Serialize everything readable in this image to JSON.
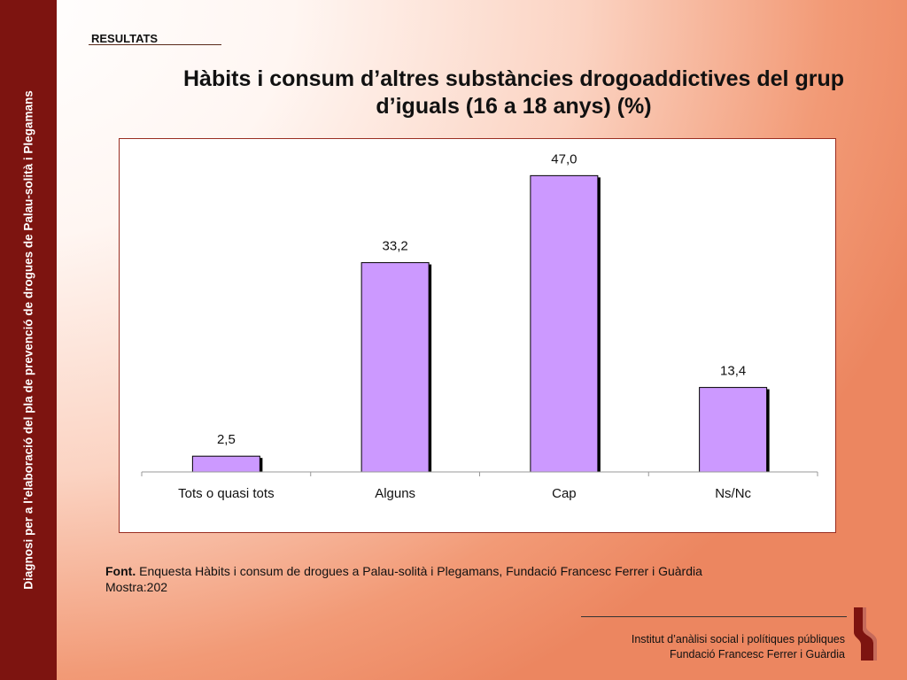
{
  "sidebar": {
    "text": "Diagnosi per a l’elaboració del pla de prevenció de drogues de Palau-solità i Plegamans"
  },
  "header": {
    "section": "RESULTATS",
    "title_line1": "Hàbits i consum d’altres substàncies drogoaddictives del grup",
    "title_line2": "d’iguals (16 a 18 anys) (%)"
  },
  "chart_data": {
    "type": "bar",
    "categories": [
      "Tots o quasi tots",
      "Alguns",
      "Cap",
      "Ns/Nc"
    ],
    "values": [
      2.5,
      33.2,
      47.0,
      13.4
    ],
    "value_labels": [
      "2,5",
      "33,2",
      "47,0",
      "13,4"
    ],
    "ylim": [
      0,
      50
    ],
    "bar_color": "#cc99ff",
    "grid": false,
    "legend": false
  },
  "source": {
    "label": "Font.",
    "text": "Enquesta Hàbits i consum de drogues a Palau-solità i Plegamans, Fundació Francesc Ferrer i Guàrdia",
    "sample": "Mostra:202"
  },
  "footer": {
    "line1": "Institut d’anàlisi social i polítiques públiques",
    "line2": "Fundació Francesc Ferrer i Guàrdia"
  }
}
